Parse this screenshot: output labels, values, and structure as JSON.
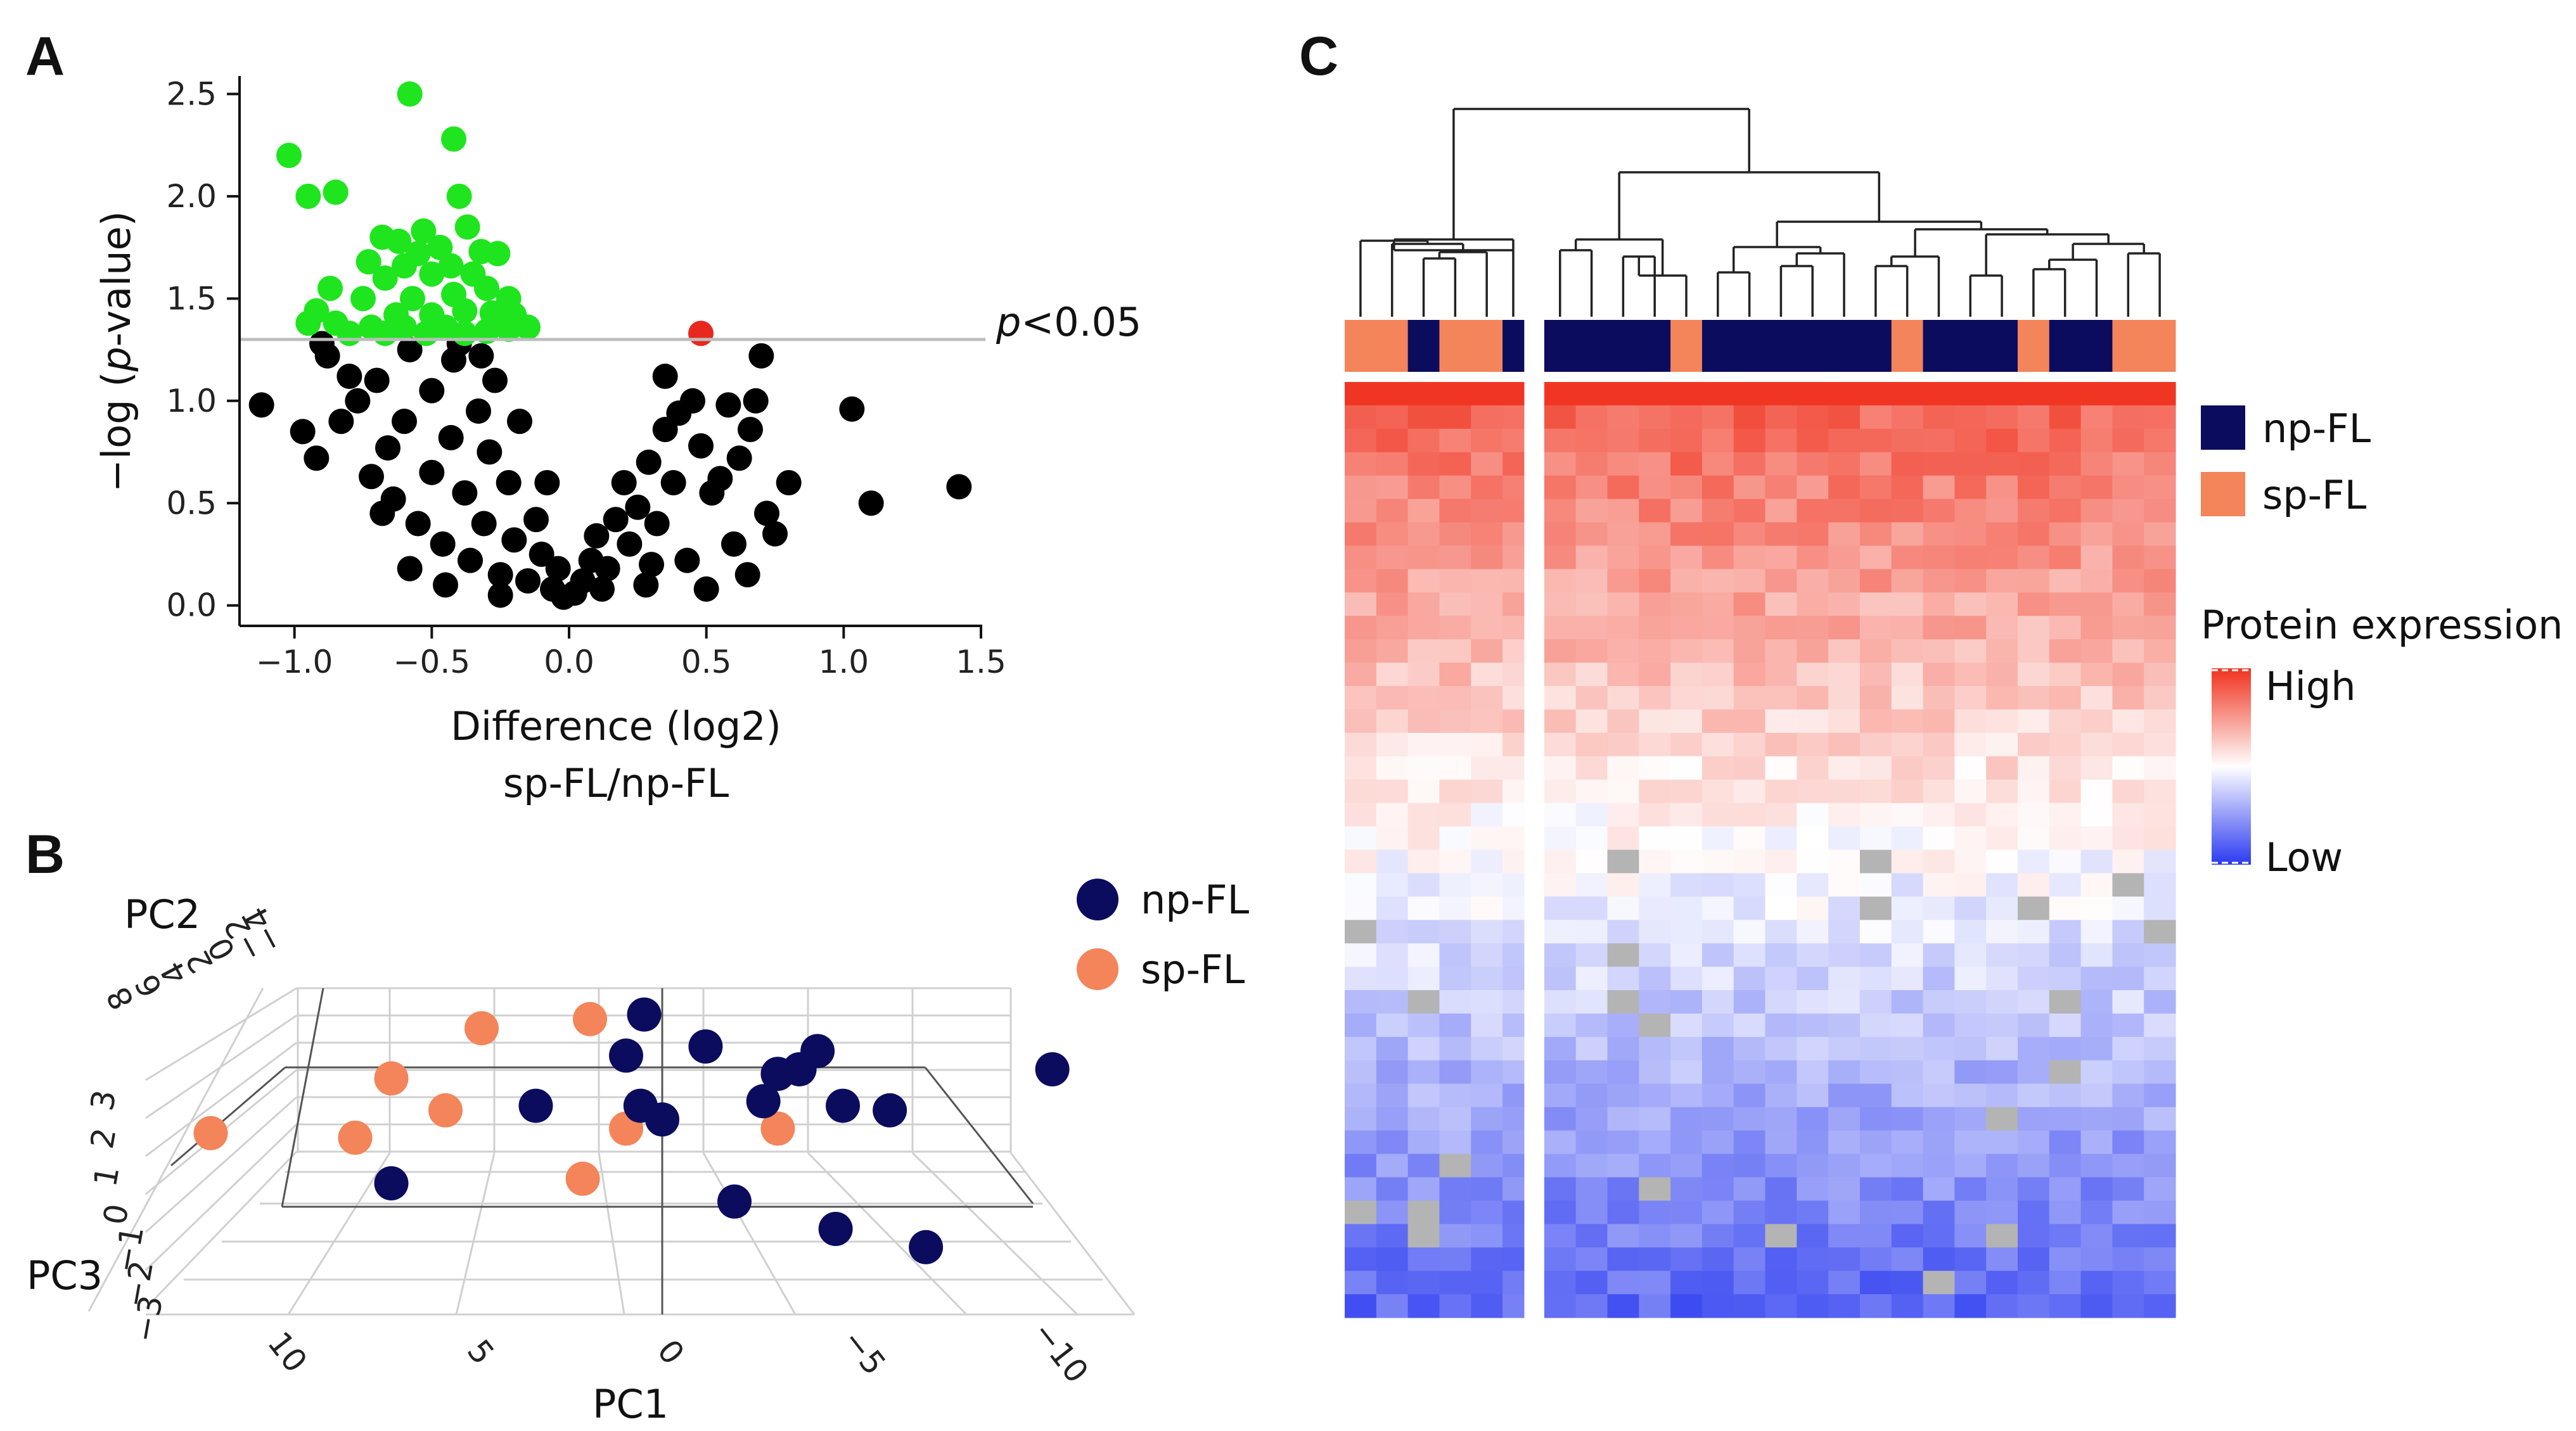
{
  "colors": {
    "not_significant": "#000000",
    "significant_down": "#1ee51e",
    "significant_up": "#e8281e",
    "np_fl": "#0b0c5e",
    "sp_fl": "#f4845a",
    "heat_high": "#f0321e",
    "heat_mid": "#ffffff",
    "heat_low": "#2a3af0"
  },
  "panels": {
    "a": "A",
    "b": "B",
    "c": "C"
  },
  "chart_data": [
    {
      "id": "A",
      "type": "scatter",
      "subtype": "volcano",
      "xlabel": [
        "Difference (log2)",
        "sp-FL/np-FL"
      ],
      "ylabel_parts": [
        "−log (",
        "p",
        "-value)"
      ],
      "xlim": [
        -1.2,
        1.5
      ],
      "ylim": [
        -0.1,
        2.65
      ],
      "xticks": [
        -1.0,
        -0.5,
        0.0,
        0.5,
        1.0,
        1.5
      ],
      "xtick_labels": [
        "−1.0",
        "−0.5",
        "0.0",
        "0.5",
        "1.0",
        "1.5"
      ],
      "yticks": [
        0.0,
        0.5,
        1.0,
        1.5,
        2.0,
        2.5
      ],
      "ytick_labels": [
        "0.0",
        "0.5",
        "1.0",
        "1.5",
        "2.0",
        "2.5"
      ],
      "threshold": {
        "y": 1.3,
        "label_italic": "p",
        "label_rest": "<0.05"
      },
      "series": [
        {
          "name": "significant_down",
          "points": [
            [
              -0.58,
              2.5
            ],
            [
              -0.42,
              2.28
            ],
            [
              -0.85,
              2.02
            ],
            [
              -0.95,
              2.0
            ],
            [
              -0.4,
              2.0
            ],
            [
              -1.02,
              2.2
            ],
            [
              -0.37,
              1.85
            ],
            [
              -0.53,
              1.83
            ],
            [
              -0.68,
              1.8
            ],
            [
              -0.62,
              1.78
            ],
            [
              -0.47,
              1.75
            ],
            [
              -0.55,
              1.72
            ],
            [
              -0.32,
              1.73
            ],
            [
              -0.26,
              1.72
            ],
            [
              -0.73,
              1.68
            ],
            [
              -0.6,
              1.66
            ],
            [
              -0.43,
              1.66
            ],
            [
              -0.35,
              1.62
            ],
            [
              -0.5,
              1.62
            ],
            [
              -0.67,
              1.6
            ],
            [
              -0.87,
              1.55
            ],
            [
              -0.3,
              1.55
            ],
            [
              -0.22,
              1.5
            ],
            [
              -0.42,
              1.52
            ],
            [
              -0.57,
              1.5
            ],
            [
              -0.75,
              1.5
            ],
            [
              -0.92,
              1.44
            ],
            [
              -0.63,
              1.42
            ],
            [
              -0.5,
              1.42
            ],
            [
              -0.38,
              1.44
            ],
            [
              -0.28,
              1.43
            ],
            [
              -0.2,
              1.42
            ],
            [
              -0.95,
              1.38
            ],
            [
              -0.85,
              1.38
            ],
            [
              -0.72,
              1.36
            ],
            [
              -0.6,
              1.36
            ],
            [
              -0.45,
              1.36
            ],
            [
              -0.3,
              1.34
            ],
            [
              -0.22,
              1.35
            ],
            [
              -0.52,
              1.33
            ],
            [
              -0.38,
              1.33
            ],
            [
              -0.67,
              1.33
            ],
            [
              -0.8,
              1.33
            ],
            [
              -0.15,
              1.36
            ]
          ]
        },
        {
          "name": "significant_up",
          "points": [
            [
              0.48,
              1.33
            ]
          ]
        },
        {
          "name": "not_significant",
          "points": [
            [
              -1.12,
              0.98
            ],
            [
              -0.97,
              0.85
            ],
            [
              -0.83,
              0.9
            ],
            [
              -0.92,
              0.72
            ],
            [
              -0.77,
              1.0
            ],
            [
              -0.88,
              1.22
            ],
            [
              -0.9,
              1.28
            ],
            [
              -0.72,
              0.63
            ],
            [
              -0.66,
              0.77
            ],
            [
              -0.64,
              0.52
            ],
            [
              -0.6,
              0.9
            ],
            [
              -0.55,
              0.4
            ],
            [
              -0.5,
              0.65
            ],
            [
              -0.5,
              1.05
            ],
            [
              -0.46,
              0.3
            ],
            [
              -0.43,
              0.82
            ],
            [
              -0.42,
              1.2
            ],
            [
              -0.38,
              0.55
            ],
            [
              -0.36,
              0.22
            ],
            [
              -0.33,
              0.95
            ],
            [
              -0.31,
              0.4
            ],
            [
              -0.29,
              0.75
            ],
            [
              -0.27,
              1.1
            ],
            [
              -0.25,
              0.15
            ],
            [
              -0.22,
              0.6
            ],
            [
              -0.2,
              0.32
            ],
            [
              -0.18,
              0.9
            ],
            [
              -0.15,
              0.12
            ],
            [
              -0.12,
              0.42
            ],
            [
              -0.1,
              0.25
            ],
            [
              -0.08,
              0.6
            ],
            [
              -0.06,
              0.08
            ],
            [
              -0.04,
              0.18
            ],
            [
              -0.02,
              0.04
            ],
            [
              0.02,
              0.06
            ],
            [
              0.05,
              0.12
            ],
            [
              0.08,
              0.22
            ],
            [
              0.1,
              0.34
            ],
            [
              0.14,
              0.18
            ],
            [
              0.17,
              0.42
            ],
            [
              0.2,
              0.6
            ],
            [
              0.22,
              0.3
            ],
            [
              0.25,
              0.48
            ],
            [
              0.29,
              0.7
            ],
            [
              0.32,
              0.4
            ],
            [
              0.35,
              0.86
            ],
            [
              0.38,
              0.6
            ],
            [
              0.4,
              0.94
            ],
            [
              0.35,
              1.12
            ],
            [
              0.43,
              0.22
            ],
            [
              0.45,
              1.0
            ],
            [
              0.48,
              0.78
            ],
            [
              0.52,
              0.55
            ],
            [
              0.55,
              0.62
            ],
            [
              0.58,
              0.98
            ],
            [
              0.62,
              0.72
            ],
            [
              0.66,
              0.86
            ],
            [
              0.68,
              1.0
            ],
            [
              0.7,
              1.22
            ],
            [
              0.72,
              0.45
            ],
            [
              0.75,
              0.35
            ],
            [
              0.8,
              0.6
            ],
            [
              1.03,
              0.96
            ],
            [
              1.1,
              0.5
            ],
            [
              1.42,
              0.58
            ],
            [
              -0.7,
              1.1
            ],
            [
              -0.58,
              1.25
            ],
            [
              -0.32,
              1.22
            ],
            [
              -0.45,
              0.1
            ],
            [
              0.28,
              0.1
            ],
            [
              0.12,
              0.08
            ],
            [
              -0.58,
              0.18
            ],
            [
              -0.25,
              0.05
            ],
            [
              0.6,
              0.3
            ],
            [
              0.5,
              0.08
            ],
            [
              -0.68,
              0.45
            ],
            [
              -0.8,
              1.12
            ],
            [
              -0.4,
              1.28
            ],
            [
              0.3,
              0.2
            ],
            [
              0.65,
              0.15
            ]
          ]
        }
      ]
    },
    {
      "id": "B",
      "type": "scatter",
      "subtype": "pca-3d",
      "axis_titles": {
        "x": "PC1",
        "y": "PC2",
        "z": "PC3"
      },
      "pc1_ticks": [
        "10",
        "5",
        "0",
        "−5",
        "−10"
      ],
      "pc2_ticks": [
        "8",
        "6",
        "4",
        "2",
        "0",
        "−2",
        "−4"
      ],
      "pc3_ticks": [
        "3",
        "2",
        "1",
        "0",
        "−1",
        "−2",
        "−3"
      ],
      "legend": [
        {
          "label": "np-FL",
          "color_key": "np_fl"
        },
        {
          "label": "sp-FL",
          "color_key": "sp_fl"
        }
      ],
      "series": [
        {
          "name": "sp-FL",
          "points": [
            {
              "pc1": 5.0,
              "pc3": 1.9
            },
            {
              "pc1": 2.0,
              "pc3": 2.1
            },
            {
              "pc1": 7.5,
              "pc3": 0.8
            },
            {
              "pc1": 6.0,
              "pc3": 0.1
            },
            {
              "pc1": 12.5,
              "pc3": -0.4
            },
            {
              "pc1": 8.5,
              "pc3": -0.5
            },
            {
              "pc1": 1.0,
              "pc3": -0.3
            },
            {
              "pc1": -3.2,
              "pc3": -0.3
            },
            {
              "pc1": 2.2,
              "pc3": -1.4
            }
          ]
        },
        {
          "name": "np-FL",
          "points": [
            {
              "pc1": 0.5,
              "pc3": 2.2
            },
            {
              "pc1": -1.2,
              "pc3": 1.5
            },
            {
              "pc1": 1.0,
              "pc3": 1.3
            },
            {
              "pc1": -4.3,
              "pc3": 1.4
            },
            {
              "pc1": -3.8,
              "pc3": 1.0
            },
            {
              "pc1": -3.2,
              "pc3": 0.9
            },
            {
              "pc1": -10.8,
              "pc3": 1.0
            },
            {
              "pc1": 3.5,
              "pc3": 0.2
            },
            {
              "pc1": 0.6,
              "pc3": 0.2
            },
            {
              "pc1": 0.0,
              "pc3": -0.1
            },
            {
              "pc1": -2.8,
              "pc3": 0.3
            },
            {
              "pc1": -5.0,
              "pc3": 0.2
            },
            {
              "pc1": -6.3,
              "pc3": 0.1
            },
            {
              "pc1": 7.5,
              "pc3": -1.5
            },
            {
              "pc1": -2.0,
              "pc3": -1.9
            },
            {
              "pc1": -4.8,
              "pc3": -2.5
            },
            {
              "pc1": -7.3,
              "pc3": -2.9
            }
          ]
        }
      ]
    },
    {
      "id": "C",
      "type": "heatmap",
      "rows": 40,
      "columns": 26,
      "column_groups": [
        "sp-FL",
        "sp-FL",
        "np-FL",
        "sp-FL",
        "sp-FL",
        "np-FL",
        "np-FL",
        "np-FL",
        "np-FL",
        "np-FL",
        "sp-FL",
        "np-FL",
        "np-FL",
        "np-FL",
        "np-FL",
        "np-FL",
        "np-FL",
        "sp-FL",
        "np-FL",
        "np-FL",
        "np-FL",
        "sp-FL",
        "np-FL",
        "np-FL",
        "sp-FL",
        "sp-FL"
      ],
      "cluster_split_after": 5,
      "group_legend": [
        {
          "label": "np-FL",
          "color_key": "np_fl"
        },
        {
          "label": "sp-FL",
          "color_key": "sp_fl"
        }
      ],
      "scale_title": "Protein expression",
      "scale_high": "High",
      "scale_low": "Low",
      "value_range": [
        -1,
        1
      ]
    }
  ]
}
